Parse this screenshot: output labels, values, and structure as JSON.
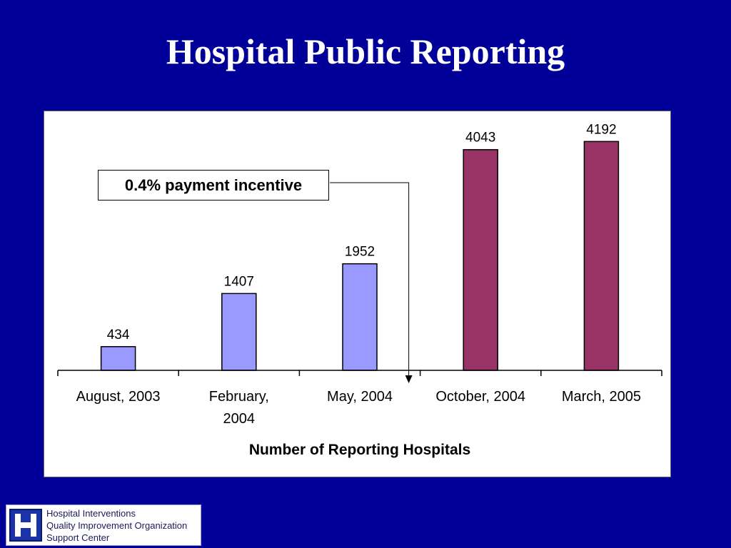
{
  "slide": {
    "title": "Hospital Public Reporting"
  },
  "annotation": {
    "text": "0.4% payment incentive"
  },
  "colors": {
    "background": "#000099",
    "bar_before": "#9999ff",
    "bar_after": "#993366"
  },
  "chart_data": {
    "type": "bar",
    "title": "",
    "xlabel": "Number of Reporting Hospitals",
    "ylabel": "",
    "ylim": [
      0,
      4500
    ],
    "grid": false,
    "legend": "none",
    "categories": [
      [
        "August, 2003"
      ],
      [
        "February,",
        "2004"
      ],
      [
        "May, 2004"
      ],
      [
        "October, 2004"
      ],
      [
        "March, 2005"
      ]
    ],
    "values": [
      434,
      1407,
      1952,
      4043,
      4192
    ],
    "bar_colors": [
      "#9999ff",
      "#9999ff",
      "#9999ff",
      "#993366",
      "#993366"
    ],
    "value_labels": [
      "434",
      "1407",
      "1952",
      "4043",
      "4192"
    ]
  },
  "footer_logo": {
    "icon": "hospital-h-icon",
    "lines": [
      "Hospital Interventions",
      "Quality Improvement Organization",
      "Support Center"
    ]
  }
}
